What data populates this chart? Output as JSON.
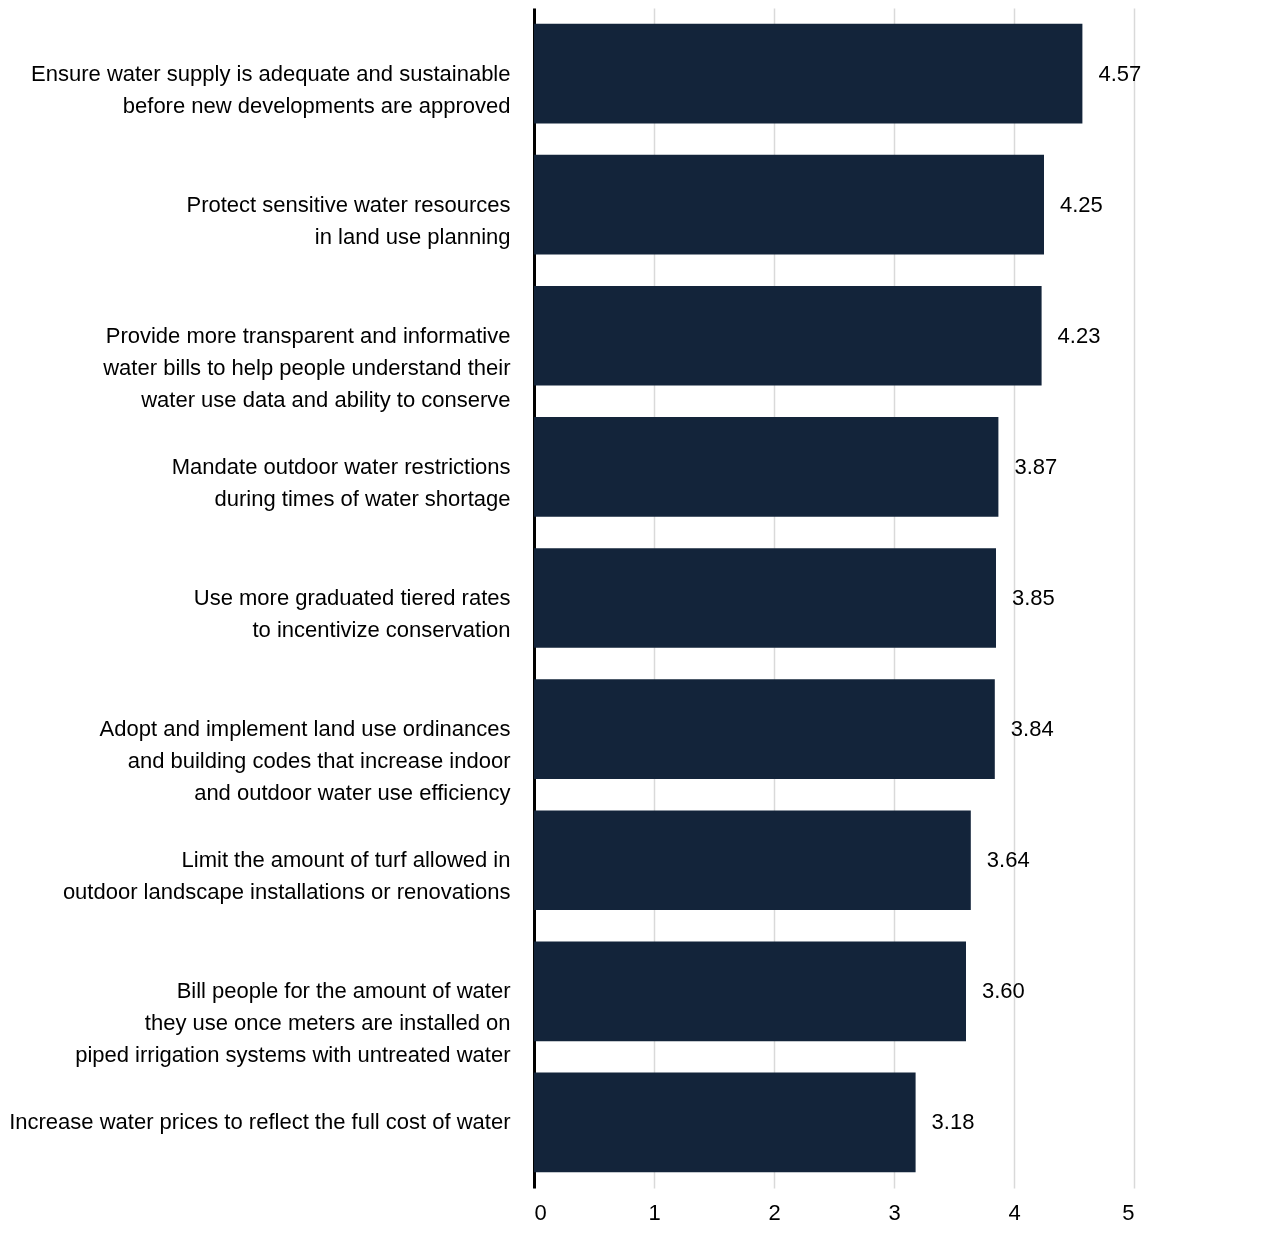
{
  "chart_data": {
    "type": "bar",
    "orientation": "horizontal",
    "categories": [
      "Ensure water supply is adequate and sustainable\nbefore new developments are approved",
      "Protect sensitive water resources\nin land use planning",
      "Provide more transparent and informative\nwater bills to help people understand their\nwater use data and ability to conserve",
      "Mandate outdoor water restrictions\nduring times of water shortage",
      "Use more graduated tiered rates\nto incentivize conservation",
      "Adopt and implement land use ordinances\nand building codes that increase indoor\nand outdoor water use efficiency",
      "Limit the amount of turf allowed in\noutdoor landscape installations or renovations",
      "Bill people for the amount of water\nthey use once meters are installed on\npiped irrigation systems with untreated water",
      "Increase water prices to reflect the full cost of water"
    ],
    "values": [
      4.57,
      4.25,
      4.23,
      3.87,
      3.85,
      3.84,
      3.64,
      3.6,
      3.18
    ],
    "value_labels": [
      "4.57",
      "4.25",
      "4.23",
      "3.87",
      "3.85",
      "3.84",
      "3.64",
      "3.60",
      "3.18"
    ],
    "color": "#13243a",
    "xlim": [
      0,
      5
    ],
    "xticks": [
      0,
      1,
      2,
      3,
      4,
      5
    ],
    "grid": "x"
  }
}
